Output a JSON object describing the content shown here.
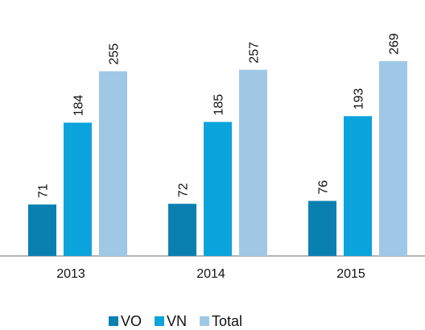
{
  "chart_data": {
    "type": "bar",
    "categories": [
      "2013",
      "2014",
      "2015"
    ],
    "series": [
      {
        "name": "VO",
        "color": "#0a80b1",
        "values": [
          71,
          72,
          76
        ]
      },
      {
        "name": "VN",
        "color": "#0ba3dc",
        "values": [
          184,
          185,
          193
        ]
      },
      {
        "name": "Total",
        "color": "#9fc8e7",
        "values": [
          255,
          257,
          269
        ]
      }
    ],
    "legend": "bottom"
  }
}
